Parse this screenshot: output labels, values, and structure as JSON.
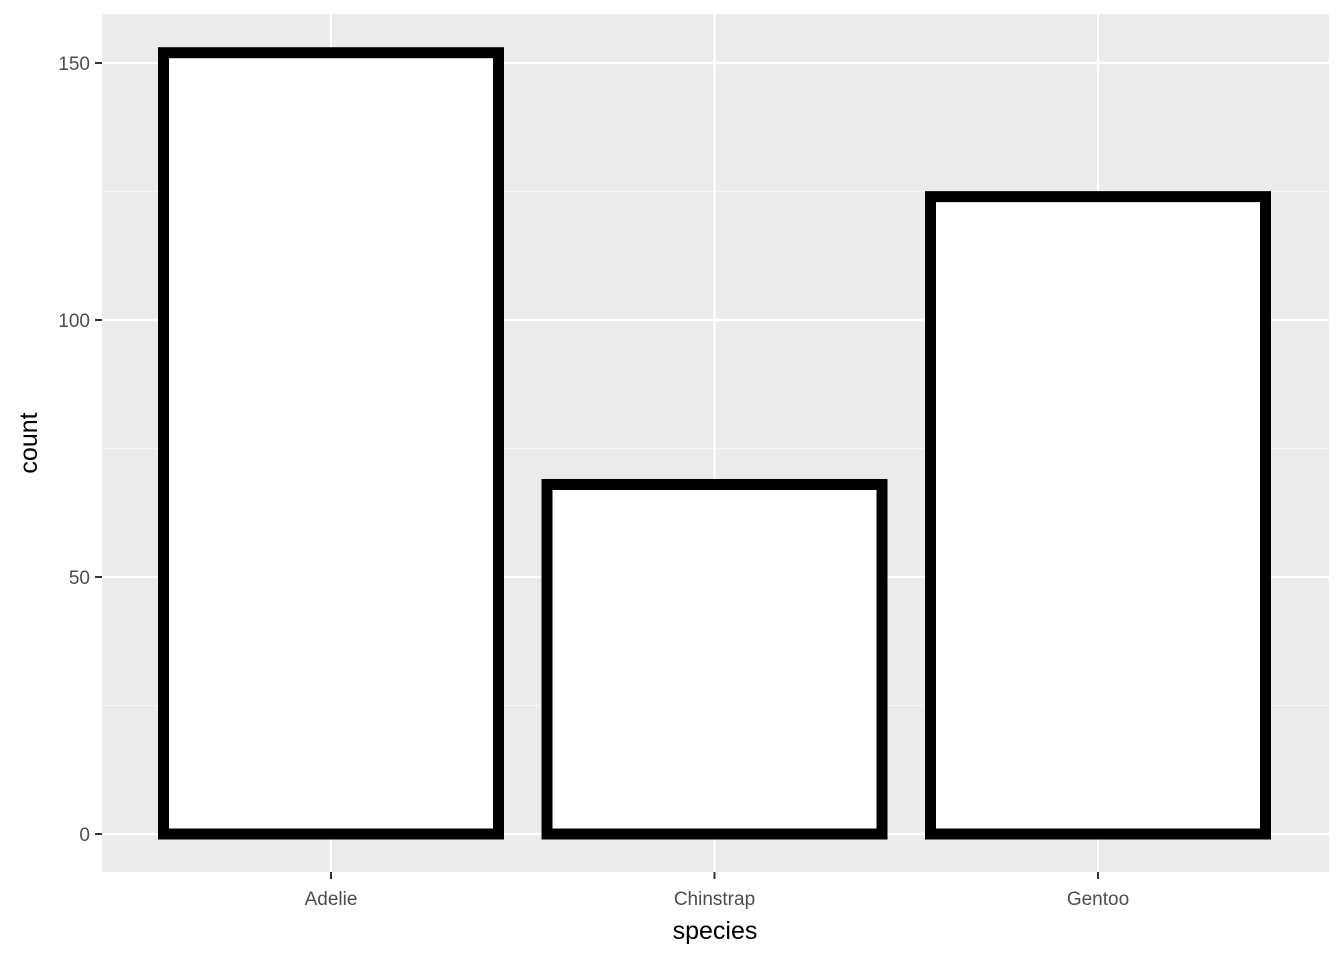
{
  "chart_data": {
    "type": "bar",
    "categories": [
      "Adelie",
      "Chinstrap",
      "Gentoo"
    ],
    "values": [
      152,
      68,
      124
    ],
    "xlabel": "species",
    "ylabel": "count",
    "ylim": [
      0,
      160
    ],
    "yticks": [
      0,
      50,
      100,
      150
    ],
    "grid": true,
    "colors": {
      "panel_background": "#EBEBEB",
      "grid_major": "#FFFFFF",
      "grid_minor": "#F5F5F5",
      "bar_fill": "#FFFFFF",
      "bar_outline": "#000000",
      "tick_text": "#4D4D4D",
      "tick_mark": "#333333"
    }
  }
}
